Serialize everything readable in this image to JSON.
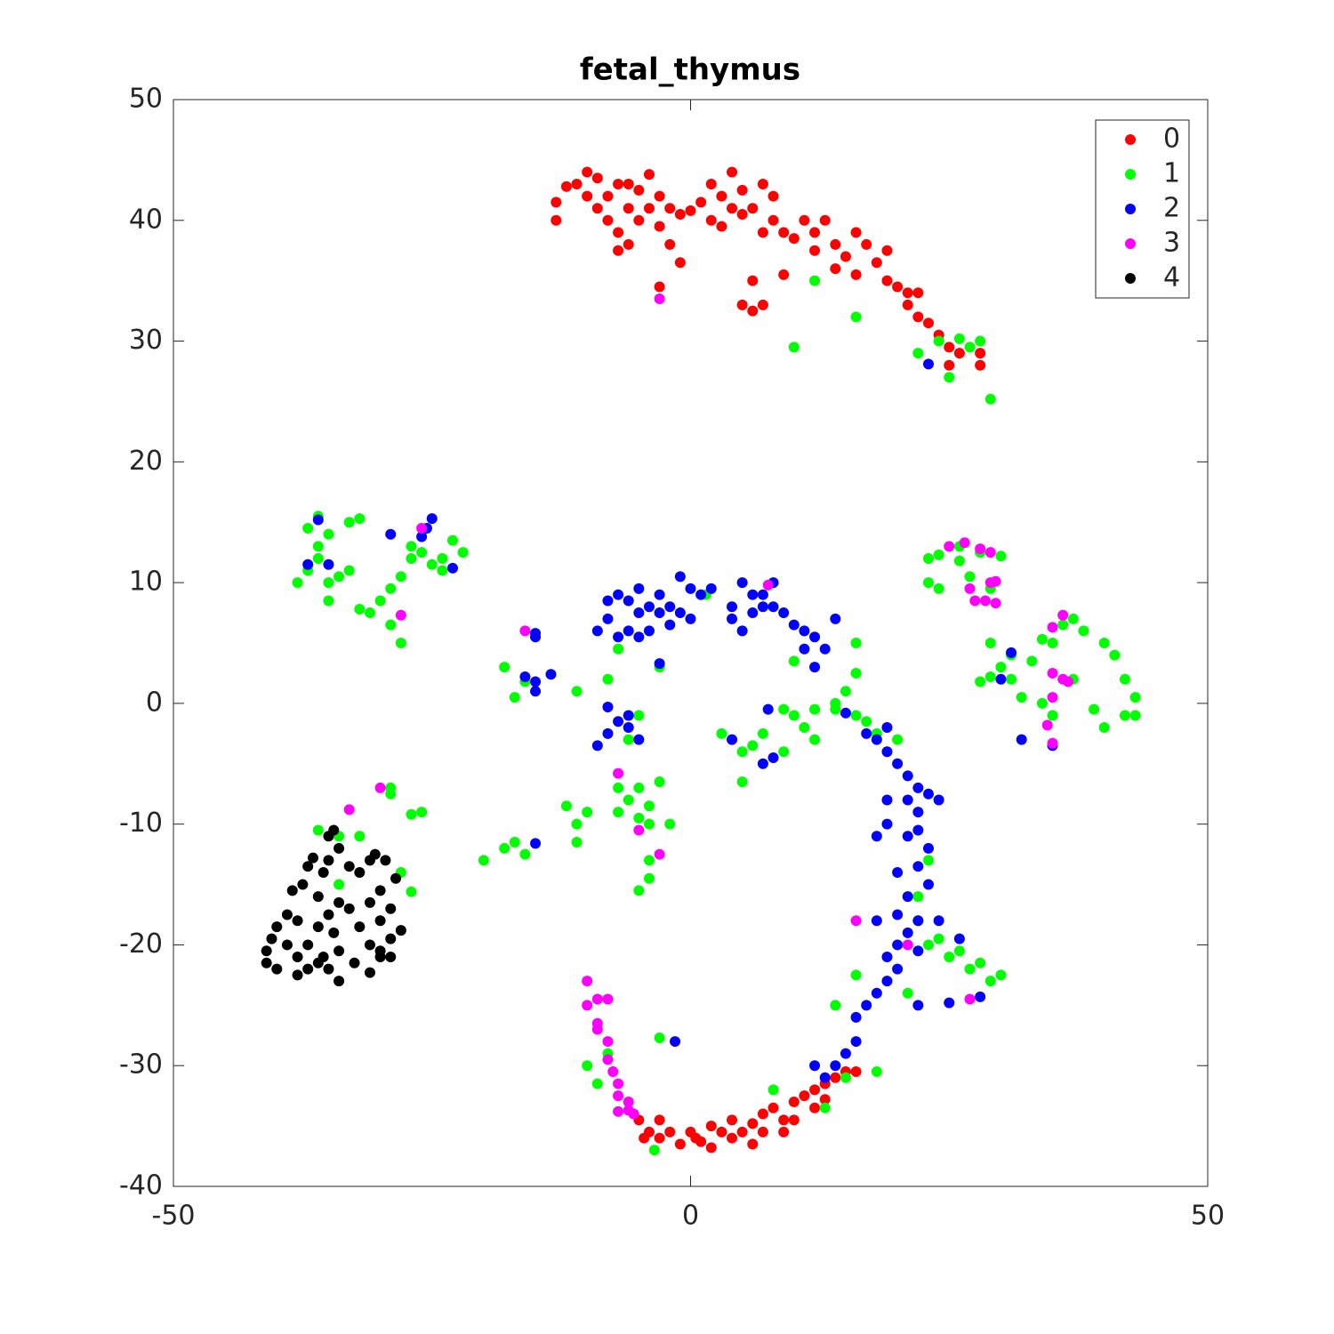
{
  "chart_data": {
    "type": "scatter",
    "title": "fetal_thymus",
    "xlim": [
      -50,
      50
    ],
    "ylim": [
      -40,
      50
    ],
    "xticks": [
      -50,
      0,
      50
    ],
    "yticks": [
      -40,
      -30,
      -20,
      -10,
      0,
      10,
      20,
      30,
      40,
      50
    ],
    "legend": "northeast",
    "series": [
      {
        "name": "0",
        "color": "#ff0000",
        "x": [
          -13,
          -13,
          -12,
          -11,
          -10,
          -10,
          -9,
          -9,
          -8,
          -8,
          -7,
          -7,
          -7,
          -6,
          -6,
          -6,
          -5,
          -5,
          -4,
          -4,
          -3,
          -3,
          -2,
          -2,
          -1,
          -1,
          0,
          1,
          2,
          2,
          3,
          3,
          4,
          4,
          5,
          5,
          6,
          6,
          7,
          7,
          7,
          8,
          8,
          9,
          9,
          10,
          11,
          12,
          12,
          13,
          14,
          14,
          15,
          16,
          16,
          17,
          18,
          19,
          19,
          20,
          21,
          21,
          22,
          22,
          23,
          24,
          25,
          25,
          26,
          28,
          28,
          -3,
          5,
          6,
          -5,
          -4,
          -3,
          -3,
          -2,
          -1,
          0,
          1,
          2,
          2,
          3,
          4,
          4,
          5,
          6,
          6,
          7,
          7,
          8,
          9,
          9,
          10,
          10,
          11,
          12,
          12,
          13,
          13,
          14,
          15,
          16,
          -4.5,
          0.5
        ],
        "y": [
          40,
          41.5,
          42.8,
          43,
          42,
          44,
          41,
          43.5,
          42,
          40,
          43,
          39,
          37.5,
          41,
          43,
          38,
          40,
          42.5,
          41,
          43.8,
          42,
          39.5,
          41,
          38,
          40.5,
          36.5,
          40.8,
          41.5,
          40,
          43,
          42,
          39.5,
          41,
          44,
          42.5,
          40.5,
          41,
          35,
          43,
          39,
          33,
          40,
          42,
          35.5,
          39,
          38.5,
          40,
          39,
          37.5,
          40,
          38,
          36,
          37,
          39,
          35.5,
          38,
          36.5,
          35,
          37.5,
          34.5,
          34,
          33,
          32,
          34,
          31.5,
          30.5,
          29.5,
          28,
          29,
          28,
          29,
          34.5,
          33,
          32.5,
          -34.5,
          -35.5,
          -34.5,
          -36,
          -35.5,
          -36.5,
          -35.5,
          -36.3,
          -35,
          -36.8,
          -35.5,
          -36,
          -34.5,
          -35.5,
          -34.8,
          -36.5,
          -34,
          -35.5,
          -33.5,
          -34.5,
          -35.5,
          -33,
          -34.5,
          -32.5,
          -32,
          -33.5,
          -31.5,
          -32.8,
          -31,
          -30.5,
          -30.5,
          -36,
          -36
        ]
      },
      {
        "name": "1",
        "color": "#00ff00",
        "x": [
          -38,
          -37,
          -37,
          -36,
          -36,
          -36,
          -35,
          -35,
          -35,
          -34,
          -33,
          -33,
          -32,
          -32,
          -31,
          -30,
          -29,
          -29,
          -28,
          -28,
          -27,
          -27,
          -26,
          -25,
          -24,
          -23,
          -22,
          -24,
          -18,
          -17,
          -16,
          -11,
          -8,
          -7,
          -3,
          -5,
          -6,
          -12,
          -11,
          -11,
          -10,
          -7,
          -7,
          -6,
          -5,
          -5,
          -4,
          -4,
          -3,
          -2,
          -4,
          -4,
          -5,
          -18,
          -17,
          -16,
          -20,
          -8,
          -9,
          -10,
          -3,
          3,
          5,
          5,
          6,
          7,
          9,
          9,
          10,
          11,
          12,
          12,
          14,
          14,
          15,
          16,
          16,
          17,
          18,
          20,
          16,
          10,
          14,
          16,
          18,
          15,
          13,
          8,
          -3.5,
          1.5,
          10,
          12,
          16,
          24,
          22,
          25,
          26,
          27,
          28,
          29,
          23,
          24,
          23,
          24,
          26,
          26,
          27,
          28,
          29,
          30,
          29,
          30,
          31,
          31,
          32,
          33,
          34,
          34,
          35,
          35,
          36,
          37,
          37,
          38,
          39,
          40,
          40,
          41,
          42,
          42,
          43,
          43,
          28,
          29,
          22,
          22,
          23,
          24,
          25,
          26,
          27,
          28,
          29,
          30,
          23,
          21,
          -36,
          -34,
          -34,
          -32,
          -29,
          -28,
          -27,
          -26,
          -27,
          -29
        ],
        "y": [
          10,
          11,
          14.5,
          15.5,
          13,
          12,
          14,
          10,
          8.5,
          10.5,
          15,
          11,
          15.3,
          7.8,
          7.5,
          8.5,
          9.5,
          6.5,
          5,
          10.5,
          12,
          13,
          12.5,
          11.5,
          12,
          13.5,
          12.5,
          11,
          3,
          0.5,
          1.8,
          1,
          2,
          4.5,
          3,
          -1,
          -3,
          -8.5,
          -10,
          -11.5,
          -9,
          -7,
          -9,
          -8,
          -9.5,
          -7,
          -8.5,
          -10,
          -6.5,
          -10,
          -13,
          -14.5,
          -15.5,
          -12,
          -11.5,
          -12.5,
          -13,
          -29,
          -31.5,
          -30,
          -27.7,
          -2.5,
          -4,
          -6.5,
          -3.5,
          -2.5,
          -0.5,
          -4,
          -1,
          -2,
          -0.5,
          -3,
          0,
          -0.5,
          1,
          2.5,
          -1,
          -1.5,
          -2.5,
          -3,
          5,
          3.5,
          -25,
          -22.5,
          -30.5,
          -31,
          -33.5,
          -32,
          -37,
          9,
          29.5,
          35,
          32,
          30,
          29,
          27,
          30.2,
          29.5,
          30,
          25.2,
          12,
          12.3,
          10,
          9.5,
          13,
          11.8,
          10.5,
          12.5,
          9.5,
          12.2,
          5,
          3,
          2,
          4,
          0.5,
          3.5,
          5.3,
          0,
          -1,
          5,
          6.5,
          7,
          2,
          6,
          -0.5,
          5,
          -2,
          4,
          -1,
          2,
          0.5,
          -1,
          1.8,
          2.2,
          -16,
          -18,
          -20,
          -19.5,
          -21,
          -20.5,
          -22,
          -21.5,
          -23,
          -22.5,
          -13,
          -24,
          -10.5,
          -11,
          -15,
          -11,
          -7,
          -14,
          -9.2,
          -9,
          -15.6,
          -7.5
        ]
      },
      {
        "name": "2",
        "color": "#0000ff",
        "x": [
          -36,
          -37,
          -35,
          -29,
          -26,
          -25.5,
          -25,
          -23,
          -15,
          -16,
          -15,
          -9,
          -8,
          -7,
          -8,
          -6,
          -5,
          -6,
          -9,
          -8,
          -8,
          -7,
          -7,
          -6,
          -6,
          -5,
          -5,
          -5,
          -4,
          -4,
          -3,
          -3,
          -2,
          -2,
          -1,
          -1,
          0,
          0,
          1,
          2,
          -3,
          4,
          4,
          5,
          5,
          6,
          6,
          7,
          7,
          8,
          8,
          9,
          10,
          11,
          11,
          12,
          12,
          13,
          14,
          -15,
          -13.5,
          15,
          7.5,
          4,
          7,
          8,
          17,
          18,
          19,
          19,
          20,
          21,
          21,
          22,
          22,
          23,
          24,
          22,
          21,
          23,
          20,
          22,
          23,
          21,
          22,
          21,
          20,
          22,
          19,
          18,
          20,
          24,
          20,
          19,
          18,
          22,
          17,
          16,
          16,
          15,
          14,
          13,
          12,
          19,
          19,
          18,
          -1.5,
          -15,
          32,
          35,
          31,
          30,
          28,
          26,
          25,
          23,
          -15
        ],
        "y": [
          15.2,
          11.5,
          11.5,
          14,
          13.8,
          14.5,
          15.3,
          11.2,
          1,
          2.2,
          1.8,
          -3.5,
          -2.5,
          -1.5,
          -0.3,
          -2,
          -3,
          -1,
          6,
          8.5,
          7,
          9,
          5.5,
          8.5,
          6,
          9.5,
          7.5,
          5.5,
          8,
          6,
          9,
          7.5,
          8,
          6.5,
          7.5,
          10.5,
          9.5,
          7,
          9,
          9.5,
          3.3,
          8,
          7,
          10,
          6,
          9,
          7.5,
          9,
          8,
          10,
          8,
          7.5,
          6.5,
          6,
          4.5,
          5.5,
          3,
          4.5,
          7,
          5.5,
          2.4,
          -0.8,
          -0.5,
          -3,
          -5,
          -4.5,
          -2.5,
          -3,
          -4,
          -2,
          -5,
          -6,
          -8,
          -7,
          -9,
          -7.5,
          -8,
          -10.5,
          -11,
          -12,
          -14,
          -13.5,
          -15,
          -16,
          -18,
          -19,
          -20,
          -20.5,
          -21,
          -18,
          -17.5,
          -18,
          -22,
          -23,
          -24,
          -25,
          -25,
          -26,
          -28,
          -29,
          -30,
          -31,
          -30,
          -8,
          -10,
          -11,
          -28,
          -11.6,
          -3,
          -3.5,
          4.2,
          2,
          -24.3,
          -19.5,
          -24.8,
          28.1,
          5.8
        ]
      },
      {
        "name": "3",
        "color": "#ff00ff",
        "x": [
          -3,
          -28,
          -26,
          -33,
          -30,
          -5,
          -3,
          -7,
          -16,
          7.5,
          16,
          21,
          27,
          -10,
          -9,
          -10,
          -9,
          -9,
          -8,
          -8,
          -7.5,
          -7,
          -7,
          -6,
          -6,
          -7,
          -5.5,
          -8,
          25,
          26.5,
          28,
          29,
          27,
          27.5,
          28.5,
          29,
          29.5,
          35,
          36,
          35,
          36,
          36.5,
          34.5,
          35,
          35,
          29.5
        ],
        "y": [
          33.5,
          7.3,
          14.5,
          -8.8,
          -7,
          -10.5,
          -12.5,
          -5.8,
          6,
          9.8,
          -18,
          -20,
          -24.5,
          -23,
          -24.5,
          -25,
          -26.5,
          -27,
          -28,
          -29.5,
          -30.5,
          -31.5,
          -32.5,
          -33,
          -33.7,
          -33.8,
          -34,
          -24.5,
          13,
          13.3,
          12.8,
          12.5,
          9.5,
          8.5,
          8.5,
          10,
          8.3,
          6.3,
          7.3,
          2.5,
          2,
          1.8,
          -1.8,
          0.5,
          -3.3,
          10.1
        ]
      },
      {
        "name": "4",
        "color": "#000000",
        "x": [
          -41,
          -41,
          -40.5,
          -40,
          -40,
          -39,
          -39,
          -38.5,
          -38,
          -38,
          -38,
          -37.5,
          -37,
          -37,
          -37,
          -36.5,
          -36,
          -36,
          -36,
          -35.5,
          -35,
          -35,
          -35,
          -35,
          -34.5,
          -34.5,
          -34,
          -34,
          -34,
          -34,
          -33,
          -33,
          -32.5,
          -32,
          -32,
          -31,
          -31,
          -31,
          -31,
          -30.5,
          -30,
          -30,
          -30,
          -29.5,
          -29,
          -29,
          -28.5,
          -28,
          -29,
          -30,
          -35.5
        ],
        "y": [
          -21.5,
          -20.5,
          -19.5,
          -22,
          -18.5,
          -20,
          -17.5,
          -15.5,
          -22.5,
          -21,
          -18,
          -15,
          -13.5,
          -20,
          -22,
          -12.8,
          -16,
          -18.5,
          -21.5,
          -14,
          -11,
          -13,
          -17.5,
          -22,
          -10.5,
          -19,
          -12,
          -16.5,
          -20.5,
          -23,
          -13.5,
          -17,
          -21.5,
          -14,
          -18.5,
          -13,
          -16.5,
          -20,
          -22.3,
          -12.5,
          -15.5,
          -18,
          -21,
          -13,
          -17,
          -19.5,
          -14.5,
          -18.8,
          -21,
          -20.5,
          -21
        ]
      }
    ]
  }
}
